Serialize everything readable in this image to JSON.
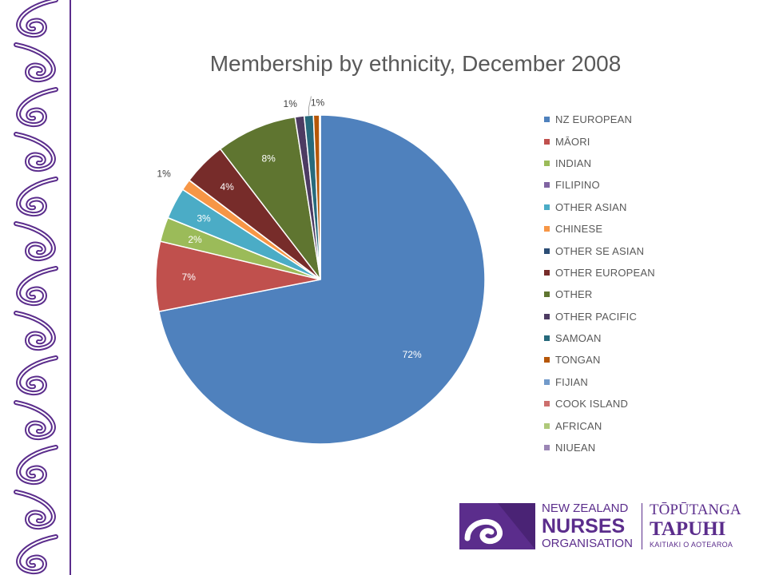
{
  "chart_data": {
    "type": "pie",
    "title": "Membership by ethnicity, December 2008",
    "legend_position": "right",
    "categories": [
      "NZ EUROPEAN",
      "MĀORI",
      "INDIAN",
      "FILIPINO",
      "OTHER ASIAN",
      "CHINESE",
      "OTHER SE ASIAN",
      "OTHER EUROPEAN",
      "OTHER",
      "OTHER PACIFIC",
      "SAMOAN",
      "TONGAN",
      "FIJIAN",
      "COOK ISLAND",
      "AFRICAN",
      "NIUEAN"
    ],
    "values": [
      72.4,
      6.9,
      2.4,
      0.02,
      3.1,
      1.1,
      0.02,
      4.3,
      8.0,
      0.9,
      0.9,
      0.6,
      0.02,
      0.02,
      0.02,
      0.02
    ],
    "data_labels": [
      "72%",
      "7%",
      "2%",
      "",
      "3%",
      "1%",
      "",
      "4%",
      "8%",
      "1%",
      "1%",
      "",
      "",
      "",
      "",
      ""
    ],
    "colors": [
      "#4f81bd",
      "#c0504d",
      "#9bbb59",
      "#8064a2",
      "#4bacc6",
      "#f79646",
      "#2c4d75",
      "#772c2a",
      "#5f7530",
      "#4d3b62",
      "#276a7c",
      "#b65708",
      "#729aca",
      "#cd6f6d",
      "#afc97a",
      "#9b86b5"
    ]
  },
  "branding": {
    "icon_name": "nzno-koru-logo-icon",
    "nzno_line1": "NEW ZEALAND",
    "nzno_line2": "NURSES",
    "nzno_line3": "ORGANISATION",
    "maori_line1": "TŌPŪTANGA",
    "maori_line2": "TAPUHI",
    "maori_line3": "KAITIAKI O AOTEAROA",
    "brand_color": "#5b2d8c"
  },
  "decoration": {
    "border_icon_name": "maori-kowhaiwhai-border-icon"
  }
}
